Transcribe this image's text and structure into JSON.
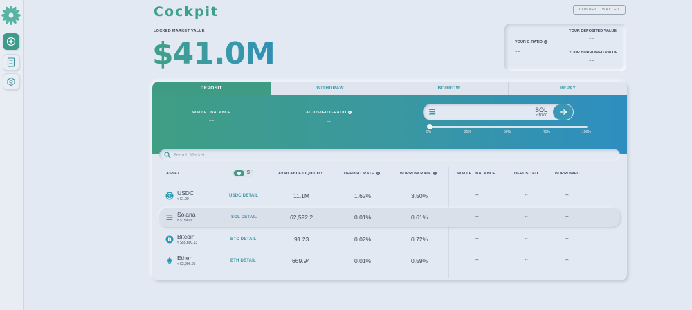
{
  "app": {
    "title": "Cockpit"
  },
  "header": {
    "tvl_label": "LOCKED MARKET VALUE",
    "tvl_value": "$41.0M",
    "connect_wallet": "CONNECT WALLET"
  },
  "user_stats": {
    "c_ratio_label": "YOUR C-RATIO",
    "c_ratio_value": "--",
    "deposited_label": "YOUR DEPOSITED VALUE",
    "deposited_value": "--",
    "borrowed_label": "YOUR BORROWED VALUE",
    "borrowed_value": "--"
  },
  "tabs": [
    {
      "label": "DEPOSIT",
      "active": true
    },
    {
      "label": "WITHDRAW",
      "active": false
    },
    {
      "label": "BORROW",
      "active": false
    },
    {
      "label": "REPAY",
      "active": false
    }
  ],
  "panel": {
    "wallet_balance_label": "WALLET BALANCE",
    "wallet_balance_value": "--",
    "adjusted_c_ratio_label": "ADJUSTED C-RATIO",
    "adjusted_c_ratio_value": "--",
    "amount_token": "SOL",
    "amount_usd": "≈ $0.00",
    "slider_value_percent": 0,
    "slider_ticks": [
      "0%",
      "25%",
      "50%",
      "75%",
      "100%"
    ]
  },
  "search": {
    "placeholder": "Search Market..."
  },
  "table": {
    "headers": {
      "asset": "ASSET",
      "toggle_dollar": "$",
      "available_liquidity": "AVAILABLE LIQUIDITY",
      "deposit_rate": "DEPOSIT RATE",
      "borrow_rate": "BORROW RATE",
      "wallet_balance": "WALLET BALANCE",
      "deposited": "DEPOSITED",
      "borrowed": "BORROWED"
    },
    "rows": [
      {
        "name": "USDC",
        "price": "≈ $1.00",
        "detail": "USDC DETAIL",
        "liquidity": "11.1M",
        "deposit_rate": "1.62%",
        "borrow_rate": "3.50%",
        "wallet": "--",
        "deposited": "--",
        "borrowed": "--",
        "icon": "usdc-icon",
        "color": "#2d9ab0"
      },
      {
        "name": "Solana",
        "price": "≈ $159.01",
        "detail": "SOL DETAIL",
        "liquidity": "62,592.2",
        "deposit_rate": "0.01%",
        "borrow_rate": "0.61%",
        "wallet": "--",
        "deposited": "--",
        "borrowed": "--",
        "icon": "solana-icon",
        "color": "#3a9aa8"
      },
      {
        "name": "Bitcoin",
        "price": "≈ $55,890.13",
        "detail": "BTC DETAIL",
        "liquidity": "91.23",
        "deposit_rate": "0.02%",
        "borrow_rate": "0.72%",
        "wallet": "--",
        "deposited": "--",
        "borrowed": "--",
        "icon": "bitcoin-icon",
        "color": "#2d9ab0"
      },
      {
        "name": "Ether",
        "price": "≈ $3,996.05",
        "detail": "ETH DETAIL",
        "liquidity": "669.94",
        "deposit_rate": "0.01%",
        "borrow_rate": "0.59%",
        "wallet": "--",
        "deposited": "--",
        "borrowed": "--",
        "icon": "ether-icon",
        "color": "#2d9ab0"
      }
    ]
  }
}
